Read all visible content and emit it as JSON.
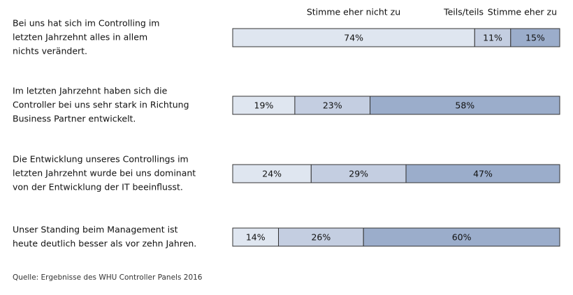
{
  "chart_data": {
    "type": "stacked-bar",
    "categories": [
      [
        "Bei uns hat sich im Controlling im",
        "letzten Jahrzehnt alles in allem",
        "nichts verändert."
      ],
      [
        "Im letzten Jahrzehnt haben sich die",
        "Controller bei uns sehr stark in Richtung",
        "Business Partner entwickelt."
      ],
      [
        "Die Entwicklung unseres Controllings im",
        "letzten Jahrzehnt wurde bei uns dominant",
        "von der Entwicklung der IT beeinflusst."
      ],
      [
        "Unser Standing beim Management ist",
        "heute deutlich besser als vor zehn Jahren."
      ]
    ],
    "series": [
      {
        "name": "Stimme eher nicht zu",
        "color": "#dfe6f0",
        "values": [
          74,
          19,
          24,
          14
        ],
        "value_labels": [
          "74%",
          "19%",
          "24%",
          "14%"
        ]
      },
      {
        "name": "Teils/teils",
        "color": "#c4cee1",
        "values": [
          11,
          23,
          29,
          26
        ],
        "value_labels": [
          "11%",
          "23%",
          "29%",
          "26%"
        ]
      },
      {
        "name": "Stimme eher zu",
        "color": "#9badcb",
        "values": [
          15,
          58,
          47,
          60
        ],
        "value_labels": [
          "15%",
          "58%",
          "47%",
          "60%"
        ]
      }
    ],
    "xlim": [
      0,
      100
    ],
    "source": "Quelle: Ergebnisse des WHU Controller Panels 2016"
  }
}
